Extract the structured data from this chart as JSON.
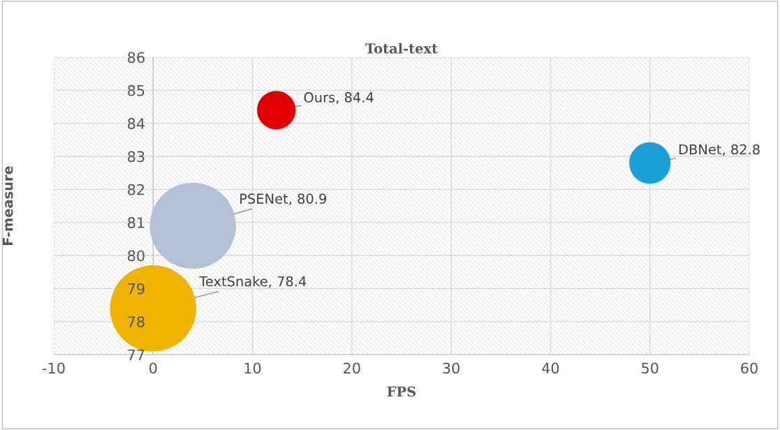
{
  "chart_data": {
    "type": "bubble",
    "title": "Total-text",
    "xlabel": "FPS",
    "ylabel": "F-measure",
    "xlim": [
      -10,
      60
    ],
    "xticks": [
      -10,
      0,
      10,
      20,
      30,
      40,
      50,
      60
    ],
    "ylim": [
      77,
      86
    ],
    "yticks": [
      77,
      78,
      79,
      80,
      81,
      82,
      83,
      84,
      85,
      86
    ],
    "grid": true,
    "series": [
      {
        "x": [
          12.4
        ],
        "values": [
          84.4
        ],
        "sizes": [
          0.2
        ],
        "color": "#e00000"
      },
      {
        "x": [
          50
        ],
        "values": [
          82.8
        ],
        "sizes": [
          0.23
        ],
        "color": "#1a9fd8"
      },
      {
        "x": [
          4
        ],
        "values": [
          80.9
        ],
        "sizes": [
          1
        ],
        "color": "#b4c0d6"
      },
      {
        "x": [
          0
        ],
        "values": [
          78.4
        ],
        "sizes": [
          1
        ],
        "color": "#f0b400"
      }
    ],
    "annotations": [
      {
        "text": "Ours, 84.4",
        "x": 12.4,
        "y": 84.4
      },
      {
        "text": "DBNet, 82.8",
        "x": 50,
        "y": 82.8
      },
      {
        "text": "PSENet, 80.9",
        "x": 4,
        "y": 80.9
      },
      {
        "text": "TextSnake, 78.4",
        "x": 0,
        "y": 78.4
      }
    ]
  }
}
